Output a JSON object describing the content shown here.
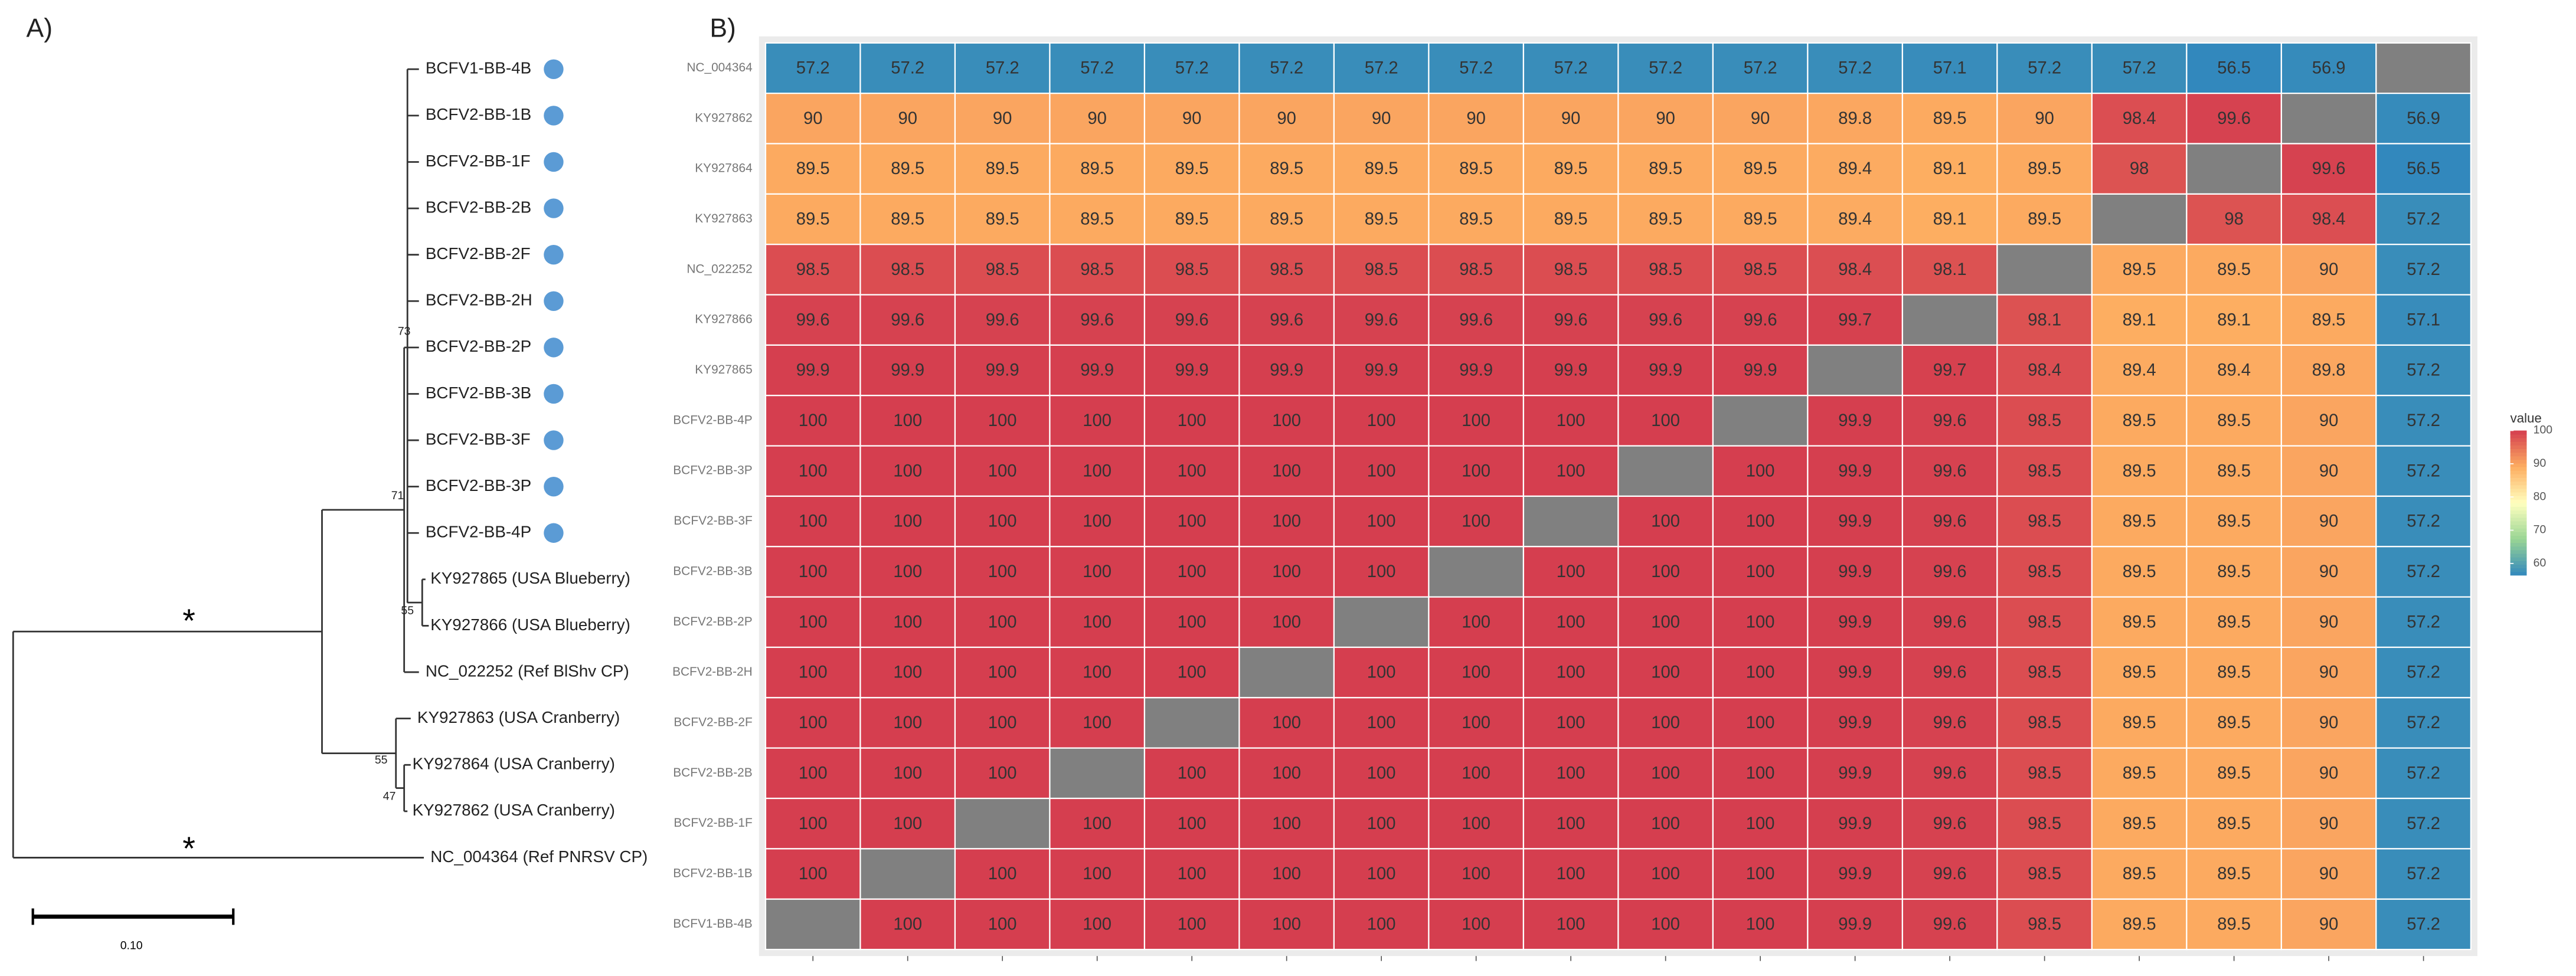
{
  "figure": {
    "panel_labels": [
      "A)",
      "B)"
    ]
  },
  "tree": {
    "leaves": [
      "BCFV1-BB-4B",
      "BCFV2-BB-1B",
      "BCFV2-BB-1F",
      "BCFV2-BB-2B",
      "BCFV2-BB-2F",
      "BCFV2-BB-2H",
      "BCFV2-BB-2P",
      "BCFV2-BB-3B",
      "BCFV2-BB-3F",
      "BCFV2-BB-3P",
      "BCFV2-BB-4P",
      "KY927865 (USA Blueberry)",
      "KY927866 (USA Blueberry)",
      "NC_022252 (Ref BlShv CP)",
      "KY927863 (USA Cranberry)",
      "KY927864 (USA Cranberry)",
      "KY927862 (USA Cranberry)",
      "NC_004364 (Ref PNRSV CP)"
    ],
    "bootstrap": [
      "73",
      "71",
      "55",
      "55",
      "47"
    ],
    "asterisks": [
      "*",
      "*"
    ],
    "scale_label": "0.10"
  },
  "chart_data": {
    "type": "heatmap",
    "rows": [
      "NC_004364",
      "KY927862",
      "KY927864",
      "KY927863",
      "NC_022252",
      "KY927866",
      "KY927865",
      "BCFV2-BB-4P",
      "BCFV2-BB-3P",
      "BCFV2-BB-3F",
      "BCFV2-BB-3B",
      "BCFV2-BB-2P",
      "BCFV2-BB-2H",
      "BCFV2-BB-2F",
      "BCFV2-BB-2B",
      "BCFV2-BB-1F",
      "BCFV2-BB-1B",
      "BCFV1-BB-4B"
    ],
    "values": [
      [
        57.2,
        57.2,
        57.2,
        57.2,
        57.2,
        57.2,
        57.2,
        57.2,
        57.2,
        57.2,
        57.2,
        57.2,
        57.1,
        57.2,
        57.2,
        56.5,
        56.9,
        null
      ],
      [
        90,
        90,
        90,
        90,
        90,
        90,
        90,
        90,
        90,
        90,
        90,
        89.8,
        89.5,
        90,
        98.4,
        99.6,
        null,
        56.9
      ],
      [
        89.5,
        89.5,
        89.5,
        89.5,
        89.5,
        89.5,
        89.5,
        89.5,
        89.5,
        89.5,
        89.5,
        89.4,
        89.1,
        89.5,
        98,
        null,
        99.6,
        56.5
      ],
      [
        89.5,
        89.5,
        89.5,
        89.5,
        89.5,
        89.5,
        89.5,
        89.5,
        89.5,
        89.5,
        89.5,
        89.4,
        89.1,
        89.5,
        null,
        98,
        98.4,
        57.2
      ],
      [
        98.5,
        98.5,
        98.5,
        98.5,
        98.5,
        98.5,
        98.5,
        98.5,
        98.5,
        98.5,
        98.5,
        98.4,
        98.1,
        null,
        89.5,
        89.5,
        90,
        57.2
      ],
      [
        99.6,
        99.6,
        99.6,
        99.6,
        99.6,
        99.6,
        99.6,
        99.6,
        99.6,
        99.6,
        99.6,
        99.7,
        null,
        98.1,
        89.1,
        89.1,
        89.5,
        57.1
      ],
      [
        99.9,
        99.9,
        99.9,
        99.9,
        99.9,
        99.9,
        99.9,
        99.9,
        99.9,
        99.9,
        99.9,
        null,
        99.7,
        98.4,
        89.4,
        89.4,
        89.8,
        57.2
      ],
      [
        100,
        100,
        100,
        100,
        100,
        100,
        100,
        100,
        100,
        100,
        null,
        99.9,
        99.6,
        98.5,
        89.5,
        89.5,
        90,
        57.2
      ],
      [
        100,
        100,
        100,
        100,
        100,
        100,
        100,
        100,
        100,
        null,
        100,
        99.9,
        99.6,
        98.5,
        89.5,
        89.5,
        90,
        57.2
      ],
      [
        100,
        100,
        100,
        100,
        100,
        100,
        100,
        100,
        null,
        100,
        100,
        99.9,
        99.6,
        98.5,
        89.5,
        89.5,
        90,
        57.2
      ],
      [
        100,
        100,
        100,
        100,
        100,
        100,
        100,
        null,
        100,
        100,
        100,
        99.9,
        99.6,
        98.5,
        89.5,
        89.5,
        90,
        57.2
      ],
      [
        100,
        100,
        100,
        100,
        100,
        100,
        null,
        100,
        100,
        100,
        100,
        99.9,
        99.6,
        98.5,
        89.5,
        89.5,
        90,
        57.2
      ],
      [
        100,
        100,
        100,
        100,
        100,
        null,
        100,
        100,
        100,
        100,
        100,
        99.9,
        99.6,
        98.5,
        89.5,
        89.5,
        90,
        57.2
      ],
      [
        100,
        100,
        100,
        100,
        null,
        100,
        100,
        100,
        100,
        100,
        100,
        99.9,
        99.6,
        98.5,
        89.5,
        89.5,
        90,
        57.2
      ],
      [
        100,
        100,
        100,
        null,
        100,
        100,
        100,
        100,
        100,
        100,
        100,
        99.9,
        99.6,
        98.5,
        89.5,
        89.5,
        90,
        57.2
      ],
      [
        100,
        100,
        null,
        100,
        100,
        100,
        100,
        100,
        100,
        100,
        100,
        99.9,
        99.6,
        98.5,
        89.5,
        89.5,
        90,
        57.2
      ],
      [
        100,
        null,
        100,
        100,
        100,
        100,
        100,
        100,
        100,
        100,
        100,
        99.9,
        99.6,
        98.5,
        89.5,
        89.5,
        90,
        57.2
      ],
      [
        null,
        100,
        100,
        100,
        100,
        100,
        100,
        100,
        100,
        100,
        100,
        99.9,
        99.6,
        98.5,
        89.5,
        89.5,
        90,
        57.2
      ]
    ],
    "missing_color": "#808080",
    "colorbar": {
      "title": "value",
      "lim": [
        56.5,
        100
      ],
      "ticks": [
        60,
        70,
        80,
        90,
        100
      ],
      "colors": [
        "#3288bd",
        "#99d594",
        "#ffffbf",
        "#fdae61",
        "#d53e4f"
      ]
    }
  }
}
